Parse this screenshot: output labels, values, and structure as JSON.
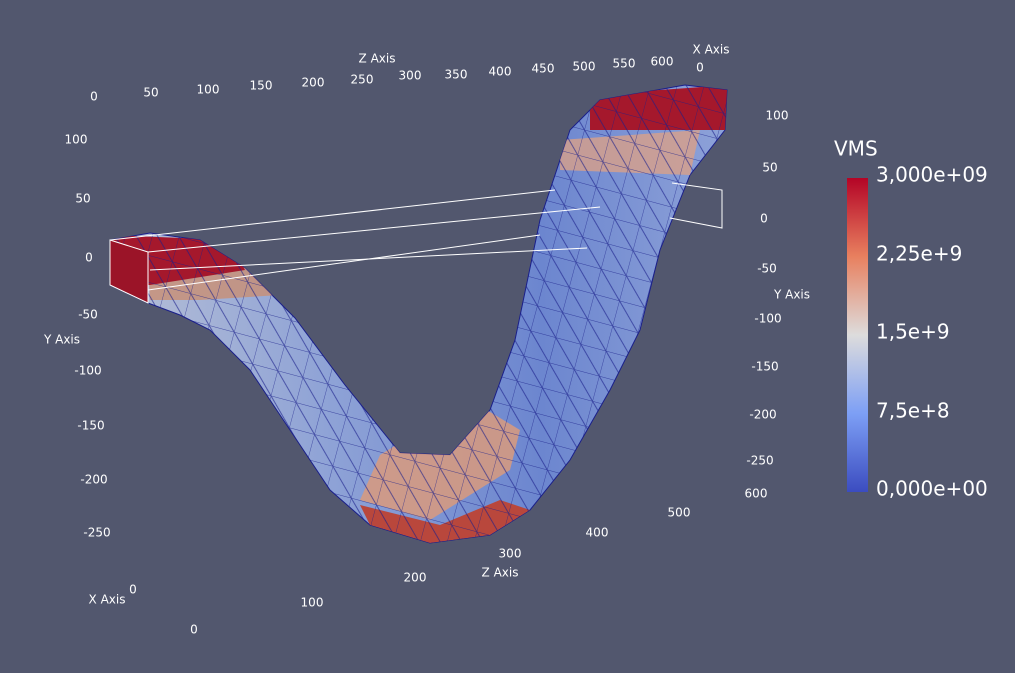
{
  "top_axis": {
    "title": "Z Axis",
    "ticks": [
      "0",
      "50",
      "100",
      "150",
      "200",
      "250",
      "300",
      "350",
      "400",
      "450",
      "500",
      "550",
      "600"
    ],
    "x_title": "X Axis",
    "x_tick": "0"
  },
  "left_axis": {
    "title": "Y Axis",
    "ticks": [
      "100",
      "50",
      "0",
      "-50",
      "-100",
      "-150",
      "-200",
      "-250"
    ]
  },
  "right_axis": {
    "title": "Y Axis",
    "ticks": [
      "100",
      "50",
      "0",
      "-50",
      "-100",
      "-150",
      "-200",
      "-250"
    ]
  },
  "bottom_axis": {
    "x_title": "X Axis",
    "x_ticks": [
      "0",
      "0"
    ],
    "z_title": "Z Axis",
    "z_ticks": [
      "100",
      "200",
      "300",
      "400",
      "500",
      "600"
    ]
  },
  "color_bar": {
    "title": "VMS",
    "labels": [
      "3,000e+09",
      "2,25e+9",
      "1,5e+9",
      "7,5e+8",
      "0,000e+00"
    ]
  }
}
